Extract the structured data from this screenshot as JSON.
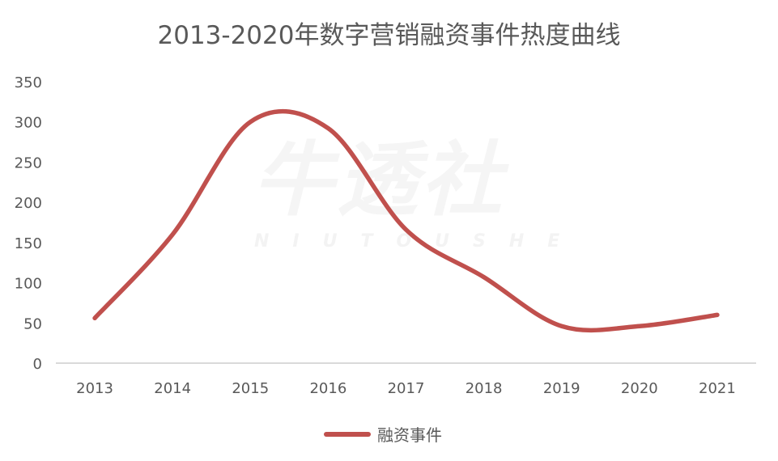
{
  "title": "2013-2020年数字营销融资事件热度曲线",
  "watermark": {
    "main": "牛透社",
    "sub": "NIUTOUSHE"
  },
  "legend": {
    "label": "融资事件",
    "color": "#C0504D"
  },
  "colors": {
    "line": "#C0504D",
    "axis": "#D9D9D9",
    "text": "#595959"
  },
  "chart_data": {
    "type": "line",
    "title": "2013-2020年数字营销融资事件热度曲线",
    "xlabel": "",
    "ylabel": "",
    "categories": [
      "2013",
      "2014",
      "2015",
      "2016",
      "2017",
      "2018",
      "2019",
      "2020",
      "2021"
    ],
    "series": [
      {
        "name": "融资事件",
        "values": [
          56,
          160,
          300,
          292,
          166,
          107,
          46,
          46,
          60
        ],
        "smooth": true
      }
    ],
    "ylim": [
      0,
      350
    ],
    "yticks": [
      0,
      50,
      100,
      150,
      200,
      250,
      300,
      350
    ],
    "grid": false,
    "legend_position": "bottom"
  }
}
